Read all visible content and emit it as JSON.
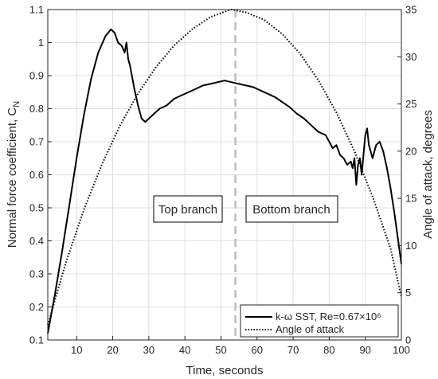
{
  "chart_data": {
    "type": "line",
    "xlabel": "Time, seconds",
    "ylabel_left": "Normal force coefficient, C",
    "ylabel_left_subscript": "N",
    "ylabel_right": "Angle of attack, degrees",
    "xlim": [
      2,
      100
    ],
    "ylim_left": [
      0.1,
      1.1
    ],
    "ylim_right": [
      0,
      35
    ],
    "xticks": [
      "10",
      "20",
      "30",
      "40",
      "50",
      "60",
      "70",
      "80",
      "90",
      "100"
    ],
    "yticks_left": [
      "0.1",
      "0.2",
      "0.3",
      "0.4",
      "0.5",
      "0.6",
      "0.7",
      "0.8",
      "0.9",
      "1",
      "1.1"
    ],
    "yticks_right": [
      "0",
      "5",
      "10",
      "15",
      "20",
      "25",
      "30",
      "35"
    ],
    "grid": true,
    "legend_position": "bottom-right",
    "series": [
      {
        "name": "k-ω SST, Re=0.67×10⁶",
        "axis": "left",
        "style": "solid",
        "x": [
          2,
          4,
          6,
          8,
          10,
          12,
          14,
          16,
          18,
          19.5,
          20.5,
          21.5,
          22.5,
          23.3,
          23.8,
          24.3,
          24.8,
          26,
          27,
          28,
          29,
          31,
          33,
          35,
          37,
          39,
          41,
          43,
          45,
          47,
          49,
          51,
          53,
          55,
          57,
          59,
          61,
          63,
          65,
          67,
          69,
          71,
          73,
          75,
          77,
          79,
          80,
          81,
          82,
          83,
          84,
          85,
          86,
          86.5,
          87,
          87.5,
          88,
          88.5,
          89,
          89.5,
          90,
          90.5,
          91,
          91.5,
          92,
          93,
          94,
          95,
          96,
          97,
          98,
          99,
          100
        ],
        "values": [
          0.12,
          0.24,
          0.37,
          0.51,
          0.65,
          0.78,
          0.89,
          0.97,
          1.02,
          1.04,
          1.03,
          1.0,
          0.99,
          0.97,
          1.0,
          0.95,
          0.93,
          0.86,
          0.81,
          0.77,
          0.76,
          0.78,
          0.8,
          0.81,
          0.83,
          0.84,
          0.85,
          0.86,
          0.87,
          0.875,
          0.88,
          0.885,
          0.88,
          0.875,
          0.87,
          0.865,
          0.855,
          0.845,
          0.835,
          0.82,
          0.805,
          0.785,
          0.77,
          0.75,
          0.73,
          0.72,
          0.7,
          0.68,
          0.69,
          0.66,
          0.65,
          0.63,
          0.64,
          0.62,
          0.65,
          0.57,
          0.63,
          0.65,
          0.6,
          0.66,
          0.72,
          0.74,
          0.69,
          0.67,
          0.65,
          0.69,
          0.7,
          0.67,
          0.62,
          0.56,
          0.49,
          0.41,
          0.33
        ]
      },
      {
        "name": "Angle of attack",
        "axis": "right",
        "style": "dotted",
        "x": [
          2,
          7,
          12,
          17,
          22,
          27,
          32,
          37,
          42,
          47,
          52,
          53,
          57,
          62,
          67,
          72,
          77,
          82,
          87,
          92,
          97,
          100
        ],
        "values": [
          1.6,
          8.2,
          13.8,
          18.6,
          22.7,
          26.1,
          28.9,
          31.2,
          32.9,
          34.2,
          34.9,
          35.0,
          34.7,
          33.9,
          32.4,
          30.3,
          27.5,
          24.1,
          20.0,
          15.2,
          9.7,
          4.6
        ]
      }
    ],
    "vertical_line": {
      "x": 54,
      "style": "dashed"
    },
    "annotations": [
      "Top branch",
      "Bottom branch"
    ]
  }
}
